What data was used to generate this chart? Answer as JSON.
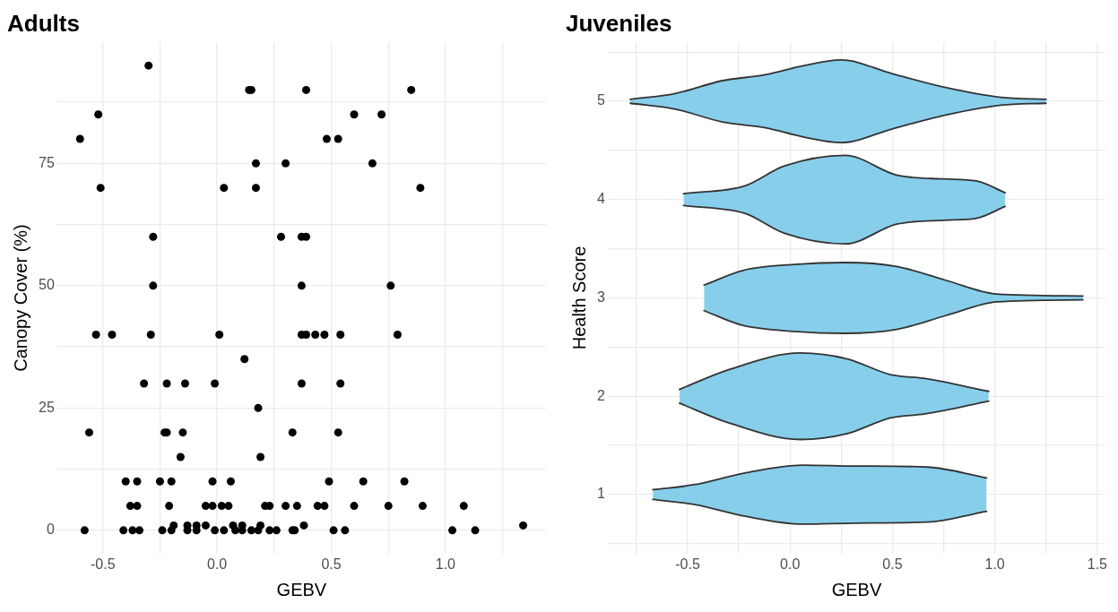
{
  "chart_data": [
    {
      "type": "scatter",
      "title": "Adults",
      "xlabel": "GEBV",
      "ylabel": "Canopy Cover (%)",
      "marker": "circle",
      "grid": true,
      "xlim": [
        -0.7,
        1.44
      ],
      "ylim": [
        -4.75,
        99.75
      ],
      "xticks": [
        {
          "value": -0.5,
          "label": "-0.5"
        },
        {
          "value": -0.25,
          "label": null
        },
        {
          "value": 0,
          "label": "0.0"
        },
        {
          "value": 0.25,
          "label": null
        },
        {
          "value": 0.5,
          "label": "0.5"
        },
        {
          "value": 0.75,
          "label": null
        },
        {
          "value": 1,
          "label": "1.0"
        },
        {
          "value": 1.25,
          "label": null
        }
      ],
      "yticks": [
        0,
        {
          "value": 12.5,
          "label": null
        },
        25,
        {
          "value": 37.5,
          "label": null
        },
        50,
        {
          "value": 62.5,
          "label": null
        },
        75,
        {
          "value": 87.5,
          "label": null
        }
      ],
      "x": [
        -0.3,
        0.14,
        0.15,
        0.39,
        0.85,
        -0.52,
        0.6,
        0.72,
        -0.6,
        0.48,
        0.53,
        0.17,
        0.3,
        0.68,
        -0.51,
        0.03,
        0.17,
        0.89,
        -0.28,
        0.28,
        0.37,
        0.39,
        -0.28,
        0.37,
        0.76,
        -0.53,
        -0.46,
        -0.29,
        0.01,
        0.37,
        0.39,
        0.43,
        0.47,
        0.54,
        0.79,
        0.12,
        -0.32,
        -0.22,
        -0.14,
        -0.01,
        0.37,
        0.54,
        0.18,
        -0.56,
        -0.23,
        -0.22,
        -0.15,
        0.33,
        0.53,
        -0.16,
        0.19,
        -0.4,
        -0.35,
        -0.25,
        -0.2,
        -0.02,
        0.06,
        0.49,
        0.64,
        0.82,
        -0.38,
        -0.35,
        -0.21,
        -0.05,
        -0.02,
        0.02,
        0.05,
        0.21,
        0.23,
        0.3,
        0.35,
        0.44,
        0.47,
        0.6,
        0.75,
        0.9,
        1.08,
        -0.19,
        -0.13,
        -0.09,
        -0.05,
        0.07,
        0.11,
        0.19,
        0.38,
        1.34,
        -0.58,
        -0.41,
        -0.37,
        -0.34,
        -0.24,
        -0.2,
        -0.13,
        -0.09,
        -0.01,
        0.03,
        0.08,
        0.11,
        0.15,
        0.18,
        0.23,
        0.26,
        0.33,
        0.34,
        0.51,
        0.56,
        1.03,
        1.13
      ],
      "series": [
        {
          "color": "#000000",
          "values": [
            95,
            90,
            90,
            90,
            90,
            85,
            85,
            85,
            80,
            80,
            80,
            75,
            75,
            75,
            70,
            70,
            70,
            70,
            60,
            60,
            60,
            60,
            50,
            50,
            50,
            40,
            40,
            40,
            40,
            40,
            40,
            40,
            40,
            40,
            40,
            35,
            30,
            30,
            30,
            30,
            30,
            30,
            25,
            20,
            20,
            20,
            20,
            20,
            20,
            15,
            15,
            10,
            10,
            10,
            10,
            10,
            10,
            10,
            10,
            10,
            5,
            5,
            5,
            5,
            5,
            5,
            5,
            5,
            5,
            5,
            5,
            5,
            5,
            5,
            5,
            5,
            5,
            1,
            1,
            1,
            1,
            1,
            1,
            1,
            1,
            1,
            0,
            0,
            0,
            0,
            0,
            0,
            0,
            0,
            0,
            0,
            0,
            0,
            0,
            0,
            0,
            0,
            0,
            0,
            0,
            0,
            0,
            0
          ]
        }
      ]
    },
    {
      "type": "area",
      "title": "Juveniles",
      "xlabel": "GEBV",
      "ylabel": "Health Score",
      "grid": true,
      "xlim": [
        -0.89,
        1.54
      ],
      "ylim": [
        0.4,
        5.6
      ],
      "xticks": [
        {
          "value": -0.75,
          "label": null
        },
        {
          "value": -0.5,
          "label": "-0.5"
        },
        {
          "value": -0.25,
          "label": null
        },
        {
          "value": 0,
          "label": "0.0"
        },
        {
          "value": 0.25,
          "label": null
        },
        {
          "value": 0.5,
          "label": "0.5"
        },
        {
          "value": 0.75,
          "label": null
        },
        {
          "value": 1,
          "label": "1.0"
        },
        {
          "value": 1.25,
          "label": null
        },
        {
          "value": 1.5,
          "label": "1.5"
        }
      ],
      "yticks": [
        {
          "value": 0.5,
          "label": null
        },
        1,
        {
          "value": 1.5,
          "label": null
        },
        2,
        {
          "value": 2.5,
          "label": null
        },
        3,
        {
          "value": 3.5,
          "label": null
        },
        4,
        {
          "value": 4.5,
          "label": null
        },
        5,
        {
          "value": 5.5,
          "label": null
        }
      ],
      "series": [
        {
          "type": "line",
          "color": "#333333",
          "x": [
            -0.67,
            -0.47,
            -0.22,
            0.06,
            0.32,
            0.67,
            0.96
          ],
          "values": [
            0.95,
            0.9,
            0.78,
            0.7,
            0.71,
            0.72,
            0.83
          ]
        },
        {
          "type": "area",
          "color": "#87ceeb",
          "x": [
            -0.67,
            -0.47,
            -0.22,
            0.06,
            0.32,
            0.67,
            0.96
          ],
          "values": [
            1.05,
            1.1,
            1.22,
            1.3,
            1.29,
            1.28,
            1.17
          ]
        },
        {
          "type": "line",
          "color": "#333333",
          "x": [
            -0.54,
            -0.3,
            0.05,
            0.28,
            0.49,
            0.66,
            0.97
          ],
          "values": [
            1.93,
            1.73,
            1.56,
            1.62,
            1.78,
            1.82,
            1.95
          ]
        },
        {
          "type": "area",
          "color": "#87ceeb",
          "x": [
            -0.54,
            -0.3,
            0.05,
            0.28,
            0.49,
            0.66,
            0.97
          ],
          "values": [
            2.07,
            2.27,
            2.44,
            2.38,
            2.22,
            2.18,
            2.05
          ]
        },
        {
          "type": "line",
          "color": "#333333",
          "x": [
            -0.42,
            -0.23,
            0.02,
            0.27,
            0.52,
            0.76,
            1.01,
            1.43
          ],
          "values": [
            2.87,
            2.72,
            2.66,
            2.64,
            2.68,
            2.82,
            2.96,
            2.98
          ]
        },
        {
          "type": "area",
          "color": "#87ceeb",
          "x": [
            -0.42,
            -0.23,
            0.02,
            0.27,
            0.52,
            0.76,
            1.01,
            1.43
          ],
          "values": [
            3.13,
            3.28,
            3.34,
            3.36,
            3.32,
            3.18,
            3.04,
            3.02
          ]
        },
        {
          "type": "line",
          "color": "#333333",
          "x": [
            -0.52,
            -0.22,
            -0.03,
            0.27,
            0.52,
            0.75,
            0.91,
            1.05
          ],
          "values": [
            3.94,
            3.86,
            3.66,
            3.55,
            3.75,
            3.79,
            3.81,
            3.93
          ]
        },
        {
          "type": "area",
          "color": "#87ceeb",
          "x": [
            -0.52,
            -0.22,
            -0.03,
            0.27,
            0.52,
            0.75,
            0.91,
            1.05
          ],
          "values": [
            4.06,
            4.14,
            4.34,
            4.45,
            4.25,
            4.21,
            4.19,
            4.07
          ]
        },
        {
          "type": "line",
          "color": "#333333",
          "x": [
            -0.78,
            -0.56,
            -0.33,
            -0.12,
            0.06,
            0.25,
            0.5,
            0.76,
            1.03,
            1.25
          ],
          "values": [
            4.98,
            4.92,
            4.79,
            4.73,
            4.64,
            4.58,
            4.72,
            4.86,
            4.96,
            4.98
          ]
        },
        {
          "type": "area",
          "color": "#87ceeb",
          "x": [
            -0.78,
            -0.56,
            -0.33,
            -0.12,
            0.06,
            0.25,
            0.5,
            0.76,
            1.03,
            1.25
          ],
          "values": [
            5.02,
            5.08,
            5.21,
            5.27,
            5.36,
            5.42,
            5.28,
            5.14,
            5.04,
            5.02
          ]
        }
      ]
    }
  ]
}
